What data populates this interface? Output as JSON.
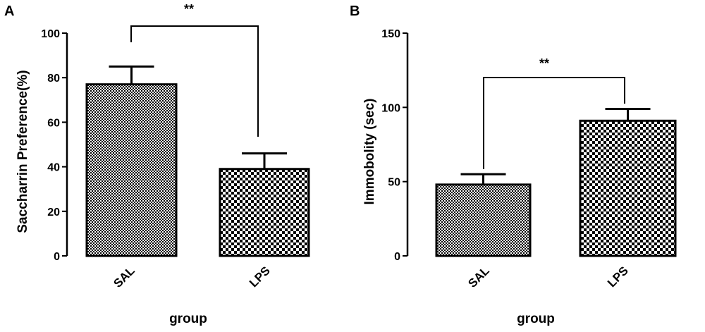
{
  "chart_data": [
    {
      "type": "bar",
      "panel_label": "A",
      "categories": [
        "SAL",
        "LPS"
      ],
      "values": [
        77,
        39
      ],
      "errors": [
        8,
        7
      ],
      "patterns": [
        "fine-checker",
        "coarse-checker"
      ],
      "xlabel": "group",
      "ylabel": "Saccharrin Preference(%)",
      "ylim": [
        0,
        100
      ],
      "yticks": [
        "0",
        "20",
        "40",
        "60",
        "80",
        "100"
      ],
      "significance": "**"
    },
    {
      "type": "bar",
      "panel_label": "B",
      "categories": [
        "SAL",
        "LPS"
      ],
      "values": [
        48,
        91
      ],
      "errors": [
        7,
        8
      ],
      "patterns": [
        "fine-checker",
        "coarse-checker"
      ],
      "xlabel": "group",
      "ylabel": "Immobolity (sec)",
      "ylim": [
        0,
        150
      ],
      "yticks": [
        "0",
        "50",
        "100",
        "150"
      ],
      "significance": "**"
    }
  ]
}
